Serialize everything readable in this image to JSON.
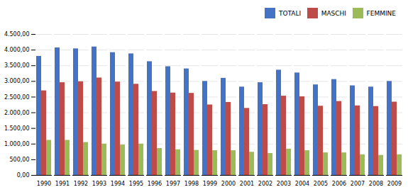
{
  "chart_data": {
    "type": "bar",
    "categories": [
      "1990",
      "1991",
      "1992",
      "1993",
      "1994",
      "1995",
      "1996",
      "1997",
      "1998",
      "1999",
      "2000",
      "2001",
      "2002",
      "2003",
      "2004",
      "2005",
      "2006",
      "2007",
      "2008",
      "2009"
    ],
    "series": [
      {
        "name": "TOTALI",
        "color": "#4472C4",
        "values": [
          3800,
          4070,
          4040,
          4100,
          3920,
          3880,
          3630,
          3470,
          3400,
          3000,
          3100,
          2820,
          2960,
          3360,
          3270,
          2890,
          3060,
          2860,
          2820,
          3000
        ]
      },
      {
        "name": "MASCHI",
        "color": "#BE4B48",
        "values": [
          2700,
          2960,
          2990,
          3110,
          2980,
          2910,
          2680,
          2630,
          2620,
          2250,
          2330,
          2140,
          2260,
          2530,
          2510,
          2210,
          2360,
          2220,
          2200,
          2340
        ]
      },
      {
        "name": "FEMMINE",
        "color": "#9BBB59",
        "values": [
          1120,
          1120,
          1050,
          1000,
          970,
          1000,
          860,
          820,
          800,
          790,
          790,
          740,
          700,
          840,
          790,
          720,
          720,
          660,
          640,
          660
        ]
      }
    ],
    "ylim": [
      0,
      4500
    ],
    "yticks": [
      {
        "value": 0,
        "label": "0,00"
      },
      {
        "value": 500,
        "label": "500,00"
      },
      {
        "value": 1000,
        "label": "1.000,00"
      },
      {
        "value": 1500,
        "label": "1.500,00"
      },
      {
        "value": 2000,
        "label": "2.000,00"
      },
      {
        "value": 2500,
        "label": "2.500,00"
      },
      {
        "value": 3000,
        "label": "3.000,00"
      },
      {
        "value": 3500,
        "label": "3.500,00"
      },
      {
        "value": 4000,
        "label": "4.000,00"
      },
      {
        "value": 4500,
        "label": "4.500,00"
      }
    ],
    "grid": true,
    "legend": "upper right"
  }
}
